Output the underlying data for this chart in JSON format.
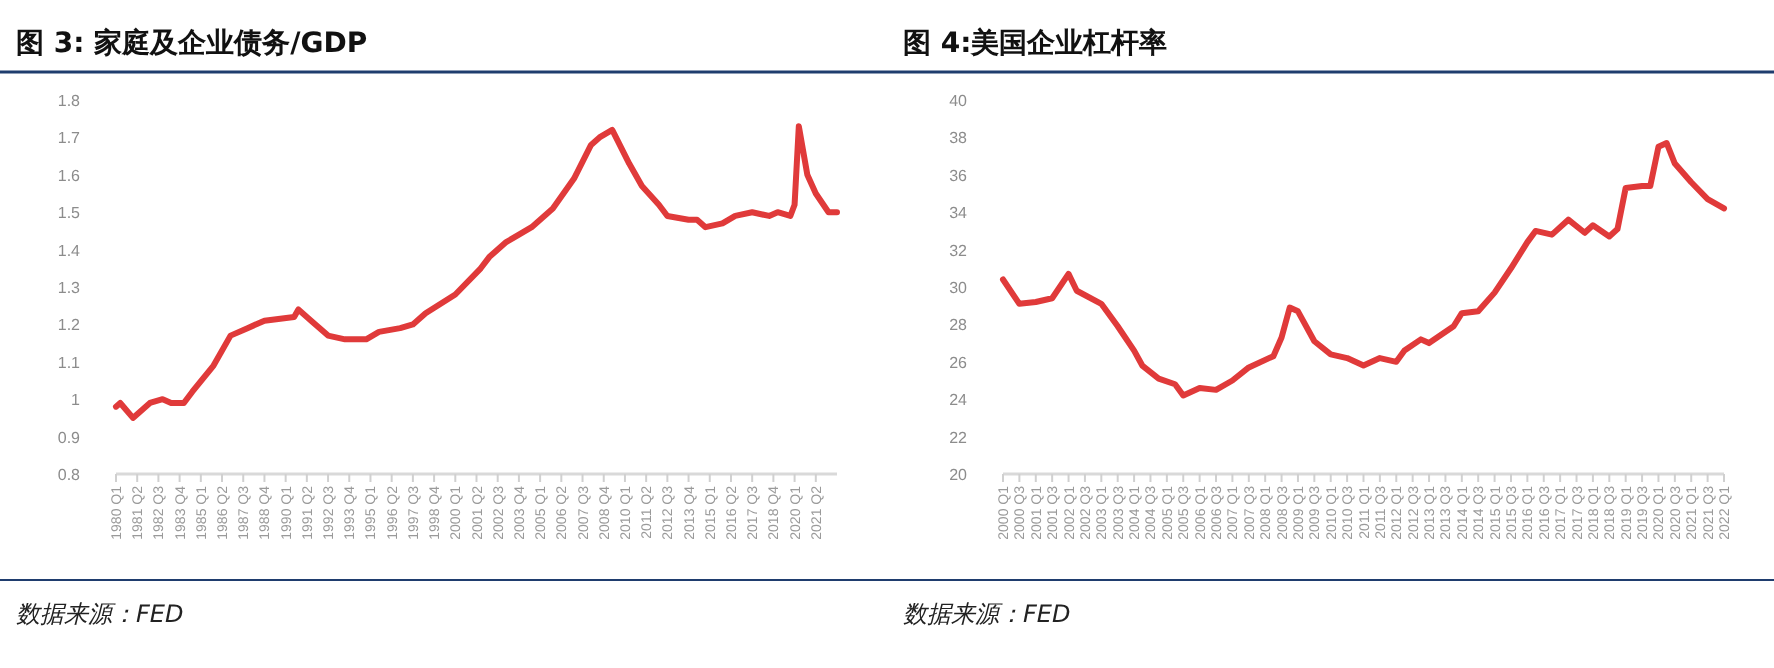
{
  "chart_data": [
    {
      "type": "line",
      "title": "图 3: 家庭及企业债务/GDP",
      "annotations": [
        "数据来源：FED"
      ],
      "xlim": [
        "1980-01",
        "2022-07"
      ],
      "xticks": [
        {
          "value": "1980-01",
          "label": "1980 Q1"
        },
        {
          "value": "1981-04",
          "label": "1981 Q2"
        },
        {
          "value": "1982-07",
          "label": "1982 Q3"
        },
        {
          "value": "1983-10",
          "label": "1983 Q4"
        },
        {
          "value": "1985-01",
          "label": "1985 Q1"
        },
        {
          "value": "1986-04",
          "label": "1986 Q2"
        },
        {
          "value": "1987-07",
          "label": "1987 Q3"
        },
        {
          "value": "1988-10",
          "label": "1988 Q4"
        },
        {
          "value": "1990-01",
          "label": "1990 Q1"
        },
        {
          "value": "1991-04",
          "label": "1991 Q2"
        },
        {
          "value": "1992-07",
          "label": "1992 Q3"
        },
        {
          "value": "1993-10",
          "label": "1993 Q4"
        },
        {
          "value": "1995-01",
          "label": "1995 Q1"
        },
        {
          "value": "1996-04",
          "label": "1996 Q2"
        },
        {
          "value": "1997-07",
          "label": "1997 Q3"
        },
        {
          "value": "1998-10",
          "label": "1998 Q4"
        },
        {
          "value": "2000-01",
          "label": "2000 Q1"
        },
        {
          "value": "2001-04",
          "label": "2001 Q2"
        },
        {
          "value": "2002-07",
          "label": "2002 Q3"
        },
        {
          "value": "2003-10",
          "label": "2003 Q4"
        },
        {
          "value": "2005-01",
          "label": "2005 Q1"
        },
        {
          "value": "2006-04",
          "label": "2006 Q2"
        },
        {
          "value": "2007-07",
          "label": "2007 Q3"
        },
        {
          "value": "2008-10",
          "label": "2008 Q4"
        },
        {
          "value": "2010-01",
          "label": "2010 Q1"
        },
        {
          "value": "2011-04",
          "label": "2011 Q2"
        },
        {
          "value": "2012-07",
          "label": "2012 Q3"
        },
        {
          "value": "2013-10",
          "label": "2013 Q4"
        },
        {
          "value": "2015-01",
          "label": "2015 Q1"
        },
        {
          "value": "2016-04",
          "label": "2016 Q2"
        },
        {
          "value": "2017-07",
          "label": "2017 Q3"
        },
        {
          "value": "2018-10",
          "label": "2018 Q4"
        },
        {
          "value": "2020-01",
          "label": "2020 Q1"
        },
        {
          "value": "2021-04",
          "label": "2021 Q2"
        }
      ],
      "ylim": [
        0.8,
        1.8
      ],
      "yticks": [
        0.8,
        0.9,
        1,
        1.1,
        1.2,
        1.3,
        1.4,
        1.5,
        1.6,
        1.7,
        1.8
      ],
      "grid": false,
      "series": [
        {
          "color": "#e03a3a",
          "x": [
            "1980-01",
            "1980-04",
            "1981-01",
            "1982-01",
            "1982-10",
            "1983-04",
            "1984-01",
            "1984-07",
            "1985-10",
            "1986-10",
            "1987-10",
            "1988-10",
            "1990-07",
            "1990-10",
            "1991-07",
            "1992-07",
            "1993-07",
            "1994-10",
            "1995-07",
            "1996-10",
            "1997-07",
            "1998-04",
            "2000-01",
            "2001-07",
            "2002-01",
            "2003-01",
            "2003-10",
            "2004-07",
            "2005-10",
            "2007-01",
            "2008-01",
            "2008-07",
            "2009-04",
            "2010-04",
            "2011-01",
            "2012-01",
            "2012-07",
            "2013-10",
            "2014-04",
            "2014-10",
            "2015-10",
            "2016-07",
            "2017-07",
            "2018-07",
            "2019-01",
            "2019-10",
            "2020-01",
            "2020-04",
            "2020-10",
            "2021-04",
            "2022-01",
            "2022-07"
          ],
          "values": [
            0.98,
            0.99,
            0.95,
            0.99,
            1.0,
            0.99,
            0.99,
            1.02,
            1.09,
            1.17,
            1.19,
            1.21,
            1.22,
            1.24,
            1.21,
            1.17,
            1.16,
            1.16,
            1.18,
            1.19,
            1.2,
            1.23,
            1.28,
            1.35,
            1.38,
            1.42,
            1.44,
            1.46,
            1.51,
            1.59,
            1.68,
            1.7,
            1.72,
            1.63,
            1.57,
            1.52,
            1.49,
            1.48,
            1.48,
            1.46,
            1.47,
            1.49,
            1.5,
            1.49,
            1.5,
            1.49,
            1.52,
            1.73,
            1.6,
            1.55,
            1.5,
            1.5
          ]
        }
      ]
    },
    {
      "type": "line",
      "title": "图 4:美国企业杠杆率",
      "annotations": [
        "数据来源：FED"
      ],
      "xlim": [
        "2000-01",
        "2022-01"
      ],
      "xticks": [
        {
          "value": "2000-01",
          "label": "2000 Q1"
        },
        {
          "value": "2000-07",
          "label": "2000 Q3"
        },
        {
          "value": "2001-01",
          "label": "2001 Q1"
        },
        {
          "value": "2001-07",
          "label": "2001 Q3"
        },
        {
          "value": "2002-01",
          "label": "2002 Q1"
        },
        {
          "value": "2002-07",
          "label": "2002 Q3"
        },
        {
          "value": "2003-01",
          "label": "2003 Q1"
        },
        {
          "value": "2003-07",
          "label": "2003 Q3"
        },
        {
          "value": "2004-01",
          "label": "2004 Q1"
        },
        {
          "value": "2004-07",
          "label": "2004 Q3"
        },
        {
          "value": "2005-01",
          "label": "2005 Q1"
        },
        {
          "value": "2005-07",
          "label": "2005 Q3"
        },
        {
          "value": "2006-01",
          "label": "2006 Q1"
        },
        {
          "value": "2006-07",
          "label": "2006 Q3"
        },
        {
          "value": "2007-01",
          "label": "2007 Q1"
        },
        {
          "value": "2007-07",
          "label": "2007 Q3"
        },
        {
          "value": "2008-01",
          "label": "2008 Q1"
        },
        {
          "value": "2008-07",
          "label": "2008 Q3"
        },
        {
          "value": "2009-01",
          "label": "2009 Q1"
        },
        {
          "value": "2009-07",
          "label": "2009 Q3"
        },
        {
          "value": "2010-01",
          "label": "2010 Q1"
        },
        {
          "value": "2010-07",
          "label": "2010 Q3"
        },
        {
          "value": "2011-01",
          "label": "2011 Q1"
        },
        {
          "value": "2011-07",
          "label": "2011 Q3"
        },
        {
          "value": "2012-01",
          "label": "2012 Q1"
        },
        {
          "value": "2012-07",
          "label": "2012 Q3"
        },
        {
          "value": "2013-01",
          "label": "2013 Q1"
        },
        {
          "value": "2013-07",
          "label": "2013 Q3"
        },
        {
          "value": "2014-01",
          "label": "2014 Q1"
        },
        {
          "value": "2014-07",
          "label": "2014 Q3"
        },
        {
          "value": "2015-01",
          "label": "2015 Q1"
        },
        {
          "value": "2015-07",
          "label": "2015 Q3"
        },
        {
          "value": "2016-01",
          "label": "2016 Q1"
        },
        {
          "value": "2016-07",
          "label": "2016 Q3"
        },
        {
          "value": "2017-01",
          "label": "2017 Q1"
        },
        {
          "value": "2017-07",
          "label": "2017 Q3"
        },
        {
          "value": "2018-01",
          "label": "2018 Q1"
        },
        {
          "value": "2018-07",
          "label": "2018 Q3"
        },
        {
          "value": "2019-01",
          "label": "2019 Q1"
        },
        {
          "value": "2019-07",
          "label": "2019 Q3"
        },
        {
          "value": "2020-01",
          "label": "2020 Q1"
        },
        {
          "value": "2020-07",
          "label": "2020 Q3"
        },
        {
          "value": "2021-01",
          "label": "2021 Q1"
        },
        {
          "value": "2021-07",
          "label": "2021 Q3"
        },
        {
          "value": "2022-01",
          "label": "2022 Q1"
        }
      ],
      "ylim": [
        20,
        40
      ],
      "yticks": [
        20,
        22,
        24,
        26,
        28,
        30,
        32,
        34,
        36,
        38,
        40
      ],
      "grid": false,
      "series": [
        {
          "color": "#e03a3a",
          "x": [
            "2000-01",
            "2000-07",
            "2001-01",
            "2001-07",
            "2002-01",
            "2002-04",
            "2003-01",
            "2003-07",
            "2004-01",
            "2004-04",
            "2004-10",
            "2005-04",
            "2005-07",
            "2006-01",
            "2006-07",
            "2007-01",
            "2007-07",
            "2008-04",
            "2008-07",
            "2008-10",
            "2009-01",
            "2009-07",
            "2010-01",
            "2010-07",
            "2011-01",
            "2011-07",
            "2012-01",
            "2012-04",
            "2012-10",
            "2013-01",
            "2013-10",
            "2014-01",
            "2014-07",
            "2015-01",
            "2015-07",
            "2016-01",
            "2016-04",
            "2016-10",
            "2017-04",
            "2017-10",
            "2018-01",
            "2018-07",
            "2018-10",
            "2019-01",
            "2019-07",
            "2019-10",
            "2020-01",
            "2020-04",
            "2020-07",
            "2021-01",
            "2021-07",
            "2022-01"
          ],
          "values": [
            30.4,
            29.1,
            29.2,
            29.4,
            30.7,
            29.8,
            29.1,
            27.9,
            26.6,
            25.8,
            25.1,
            24.8,
            24.2,
            24.6,
            24.5,
            25.0,
            25.7,
            26.3,
            27.3,
            28.9,
            28.7,
            27.1,
            26.4,
            26.2,
            25.8,
            26.2,
            26.0,
            26.6,
            27.2,
            27.0,
            27.9,
            28.6,
            28.7,
            29.7,
            31.0,
            32.4,
            33.0,
            32.8,
            33.6,
            32.9,
            33.3,
            32.7,
            33.1,
            35.3,
            35.4,
            35.4,
            37.5,
            37.7,
            36.6,
            35.6,
            34.7,
            34.2
          ]
        }
      ]
    }
  ]
}
